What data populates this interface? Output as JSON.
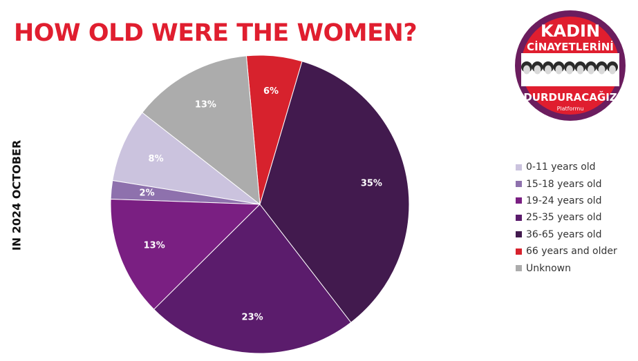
{
  "title": "HOW OLD WERE THE WOMEN?",
  "side_label": "IN 2024 OCTOBER",
  "logo": {
    "line1": "KADIN",
    "line2": "CİNAYETLERİNİ",
    "line3": "DURDURACAĞIZ",
    "line4": "Platformu",
    "colors": {
      "ring": "#e01e2f",
      "center": "#6b1d5e"
    }
  },
  "chart_data": {
    "type": "pie",
    "start_angle_deg": 142,
    "direction": "counterclockwise",
    "legend_position": "right",
    "slices": [
      {
        "name": "0-11 years old",
        "value": 8,
        "label": "8%",
        "color": "#cbc3de"
      },
      {
        "name": "15-18 years old",
        "value": 2,
        "label": "2%",
        "color": "#8e71ad"
      },
      {
        "name": "19-24 years old",
        "value": 13,
        "label": "13%",
        "color": "#7a1f82"
      },
      {
        "name": "25-35 years old",
        "value": 23,
        "label": "23%",
        "color": "#5b1c6c"
      },
      {
        "name": "36-65 years old",
        "value": 35,
        "label": "35%",
        "color": "#421a4e"
      },
      {
        "name": "66 years and older",
        "value": 6,
        "label": "6%",
        "color": "#d7222d"
      },
      {
        "name": "Unknown",
        "value": 13,
        "label": "13%",
        "color": "#acacac"
      }
    ]
  }
}
